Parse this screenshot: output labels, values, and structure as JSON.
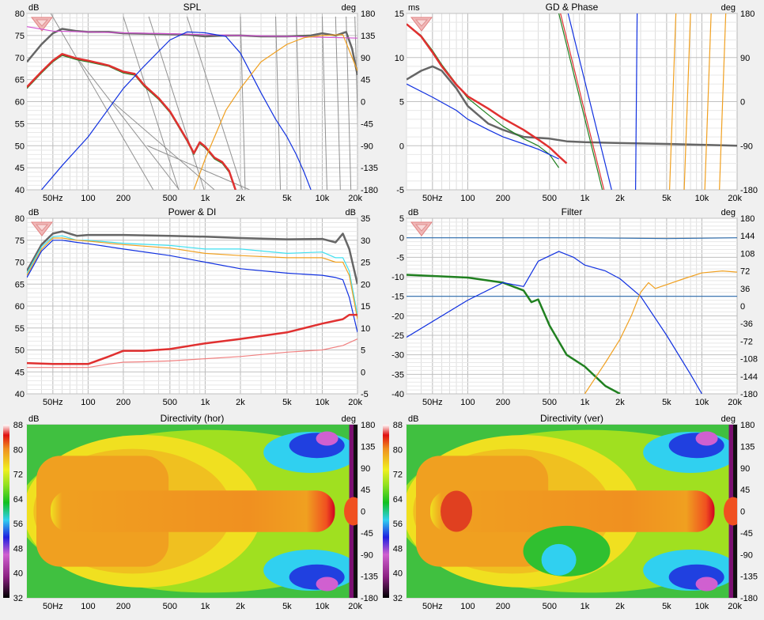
{
  "panels": {
    "spl": {
      "title": "SPL",
      "left_unit": "dB",
      "right_unit": "deg",
      "y_ticks": [
        "80",
        "75",
        "70",
        "65",
        "60",
        "55",
        "50",
        "45",
        "40"
      ],
      "y2_ticks": [
        "180",
        "135",
        "90",
        "45",
        "0",
        "-45",
        "-90",
        "-135",
        "-180"
      ]
    },
    "gd": {
      "title": "GD & Phase",
      "left_unit": "ms",
      "right_unit": "deg",
      "y_ticks": [
        "15",
        "10",
        "5",
        "0",
        "-5"
      ],
      "y2_ticks": [
        "180",
        "90",
        "0",
        "-90",
        "-180"
      ]
    },
    "power": {
      "title": "Power & DI",
      "left_unit": "dB",
      "right_unit": "dB",
      "y_ticks": [
        "80",
        "75",
        "70",
        "65",
        "60",
        "55",
        "50",
        "45",
        "40"
      ],
      "y2_ticks": [
        "35",
        "30",
        "25",
        "20",
        "15",
        "10",
        "5",
        "0",
        "-5"
      ]
    },
    "filter": {
      "title": "Filter",
      "left_unit": "dB",
      "right_unit": "deg",
      "y_ticks": [
        "5",
        "0",
        "-5",
        "-10",
        "-15",
        "-20",
        "-25",
        "-30",
        "-35",
        "-40"
      ],
      "y2_ticks": [
        "180",
        "144",
        "108",
        "72",
        "36",
        "0",
        "-36",
        "-72",
        "-108",
        "-144",
        "-180"
      ]
    },
    "dir_hor": {
      "title": "Directivity (hor)",
      "left_unit": "dB",
      "right_unit": "deg",
      "y_ticks": [
        "88",
        "80",
        "72",
        "64",
        "56",
        "48",
        "40",
        "32"
      ],
      "y2_ticks": [
        "180",
        "135",
        "90",
        "45",
        "0",
        "-45",
        "-90",
        "-135",
        "-180"
      ]
    },
    "dir_ver": {
      "title": "Directivity (ver)",
      "left_unit": "dB",
      "right_unit": "deg",
      "y_ticks": [
        "88",
        "80",
        "72",
        "64",
        "56",
        "48",
        "40",
        "32"
      ],
      "y2_ticks": [
        "180",
        "135",
        "90",
        "45",
        "0",
        "-45",
        "-90",
        "-135",
        "-180"
      ]
    }
  },
  "x_ticks": [
    {
      "f": 50,
      "label": "50Hz"
    },
    {
      "f": 100,
      "label": "100"
    },
    {
      "f": 200,
      "label": "200"
    },
    {
      "f": 500,
      "label": "500"
    },
    {
      "f": 1000,
      "label": "1k"
    },
    {
      "f": 2000,
      "label": "2k"
    },
    {
      "f": 5000,
      "label": "5k"
    },
    {
      "f": 10000,
      "label": "10k"
    },
    {
      "f": 20000,
      "label": "20k"
    }
  ],
  "colors": {
    "bg": "#f0f0f0",
    "plot_bg": "#ffffff",
    "grid": "#d0d0d0",
    "gray": "#666666",
    "thin_gray": "#909090",
    "magenta": "#d050d0",
    "green": "#208020",
    "red": "#e03030",
    "blue": "#1030e0",
    "orange": "#f0a020",
    "cyan": "#40e0f0",
    "light_red": "#f08080",
    "steel": "#2f6fb0"
  },
  "chart_data": [
    {
      "type": "line",
      "title": "SPL",
      "xscale": "log",
      "xlim": [
        30,
        20000
      ],
      "ylim": [
        40,
        80
      ],
      "ylabel": "dB",
      "y2lim": [
        -180,
        180
      ],
      "y2label": "deg",
      "series": [
        {
          "color": "gray",
          "x": [
            30,
            40,
            50,
            60,
            80,
            100,
            150,
            200,
            300,
            500,
            700,
            1000,
            1500,
            2000,
            3000,
            5000,
            8000,
            10000,
            13000,
            16000,
            18000,
            20000
          ],
          "y": [
            69,
            73,
            75.5,
            76.5,
            76,
            75.8,
            75.8,
            75.5,
            75.4,
            75.3,
            75.2,
            74.8,
            75,
            75,
            74.8,
            74.8,
            75,
            75.5,
            75,
            75.8,
            72,
            66
          ]
        },
        {
          "color": "magenta",
          "x": [
            30,
            50,
            100,
            200,
            500,
            1000,
            2000,
            5000,
            10000,
            20000
          ],
          "y": [
            77,
            76,
            75.8,
            75.6,
            75.4,
            75.2,
            75.0,
            74.8,
            74.6,
            74.4
          ]
        },
        {
          "color": "green",
          "x": [
            30,
            40,
            50,
            60,
            80,
            100,
            150,
            200,
            250,
            300,
            400,
            500,
            600,
            700,
            800,
            900,
            1000,
            1200,
            1400,
            1600,
            1800,
            2000
          ],
          "y": [
            63,
            66.5,
            69,
            70.5,
            69.5,
            69,
            68,
            66.5,
            66,
            63.5,
            60.5,
            57.5,
            54,
            51,
            48,
            50.5,
            49.5,
            47,
            46,
            44,
            40,
            36
          ]
        },
        {
          "color": "red",
          "x": [
            30,
            40,
            50,
            60,
            80,
            100,
            150,
            200,
            250,
            300,
            400,
            500,
            600,
            700,
            800,
            900,
            1000,
            1200,
            1400,
            1600,
            1800,
            2000
          ],
          "y": [
            63.3,
            66.8,
            69.3,
            70.8,
            69.8,
            69.3,
            68.2,
            66.8,
            66.3,
            63.8,
            60.8,
            57.8,
            54.3,
            51.3,
            48.3,
            50.8,
            49.8,
            47.3,
            46.3,
            44.3,
            40.3,
            36.3
          ]
        },
        {
          "color": "blue",
          "x": [
            40,
            60,
            100,
            200,
            300,
            500,
            700,
            1000,
            1500,
            2000,
            3000,
            4000,
            5000,
            6000,
            7000,
            8000
          ],
          "y": [
            40,
            45.5,
            52,
            63,
            68,
            74,
            75.8,
            75.6,
            74.8,
            71,
            62,
            56,
            52,
            48,
            44,
            40
          ]
        },
        {
          "color": "orange",
          "x": [
            800,
            1000,
            1500,
            2000,
            3000,
            5000,
            7000,
            10000,
            15000,
            20000
          ],
          "y": [
            40,
            47,
            58,
            63,
            69,
            73,
            74.5,
            75,
            75.2,
            67
          ]
        }
      ]
    },
    {
      "type": "line",
      "title": "GD & Phase",
      "xscale": "log",
      "xlim": [
        30,
        20000
      ],
      "ylim": [
        -5,
        15
      ],
      "ylabel": "ms",
      "y2lim": [
        -180,
        180
      ],
      "y2label": "deg",
      "series": [
        {
          "color": "gray",
          "x": [
            30,
            40,
            50,
            60,
            80,
            100,
            150,
            200,
            300,
            500,
            700,
            1000,
            2000,
            5000,
            10000,
            20000
          ],
          "y": [
            7.5,
            8.5,
            9.0,
            8.5,
            6.5,
            4.5,
            2.5,
            1.8,
            1.0,
            0.8,
            0.5,
            0.4,
            0.3,
            0.2,
            0.1,
            0.0
          ]
        },
        {
          "color": "green",
          "x": [
            30,
            40,
            50,
            60,
            80,
            100,
            150,
            200,
            300,
            400,
            500,
            600
          ],
          "y": [
            13.8,
            12.5,
            10.8,
            9.2,
            7.0,
            5.4,
            3.5,
            2.2,
            0.8,
            0.0,
            -1.0,
            -2.5
          ]
        },
        {
          "color": "red",
          "x": [
            30,
            40,
            50,
            60,
            80,
            100,
            150,
            200,
            300,
            400,
            500,
            600,
            700
          ],
          "y": [
            13.8,
            12.4,
            10.6,
            9.0,
            6.9,
            5.6,
            4.2,
            3.1,
            1.8,
            0.7,
            -0.2,
            -1.2,
            -2.0
          ]
        },
        {
          "color": "blue",
          "x": [
            30,
            50,
            80,
            100,
            150,
            200,
            300,
            400,
            500,
            600
          ],
          "y": [
            7.0,
            5.5,
            4.0,
            3.0,
            1.8,
            1.0,
            0.2,
            -0.4,
            -1.0,
            -1.5
          ]
        }
      ]
    },
    {
      "type": "line",
      "title": "Power & DI",
      "xscale": "log",
      "xlim": [
        30,
        20000
      ],
      "ylim": [
        40,
        80
      ],
      "ylabel": "dB",
      "y2lim": [
        -5,
        35
      ],
      "y2label": "dB",
      "series": [
        {
          "color": "gray",
          "x": [
            30,
            40,
            50,
            60,
            80,
            100,
            200,
            500,
            1000,
            2000,
            5000,
            10000,
            13000,
            15000,
            17000,
            20000
          ],
          "y": [
            68,
            74,
            76.5,
            77,
            76,
            76.2,
            76.2,
            76,
            75.8,
            75.5,
            75.2,
            75.3,
            74.5,
            76.5,
            73,
            65
          ]
        },
        {
          "color": "cyan",
          "x": [
            30,
            40,
            50,
            60,
            80,
            100,
            200,
            500,
            1000,
            2000,
            5000,
            10000,
            13000,
            15000,
            17000,
            20000
          ],
          "y": [
            67.5,
            73.5,
            75.8,
            76,
            75,
            75,
            74.3,
            73.8,
            73,
            73,
            72,
            72.3,
            71,
            71,
            68,
            58
          ]
        },
        {
          "color": "orange",
          "x": [
            30,
            40,
            50,
            60,
            80,
            100,
            200,
            500,
            1000,
            2000,
            5000,
            10000,
            13000,
            15000,
            17000,
            20000
          ],
          "y": [
            67,
            73,
            75.5,
            75.5,
            75,
            74.8,
            74,
            73.2,
            72,
            71.5,
            71,
            71,
            70,
            70,
            67,
            57
          ]
        },
        {
          "color": "blue",
          "x": [
            30,
            40,
            50,
            60,
            80,
            100,
            200,
            500,
            1000,
            2000,
            5000,
            10000,
            13000,
            15000,
            17000,
            20000
          ],
          "y": [
            66.5,
            72.5,
            75,
            75,
            74.5,
            74.2,
            73,
            71.5,
            70,
            68.5,
            67.5,
            67,
            66.5,
            66,
            62,
            54
          ]
        },
        {
          "color": "red",
          "x": [
            30,
            50,
            100,
            150,
            200,
            300,
            500,
            1000,
            2000,
            5000,
            10000,
            15000,
            17000,
            20000
          ],
          "y": [
            47,
            46.8,
            46.8,
            48.5,
            49.8,
            49.8,
            50.2,
            51.5,
            52.5,
            54,
            56,
            57,
            58,
            58
          ]
        },
        {
          "color": "light_red",
          "x": [
            30,
            50,
            100,
            150,
            200,
            300,
            500,
            1000,
            2000,
            5000,
            10000,
            15000,
            20000
          ],
          "y": [
            46,
            46,
            46,
            46.8,
            47.2,
            47.3,
            47.5,
            48,
            48.5,
            49.5,
            50,
            51,
            52.5
          ]
        }
      ]
    },
    {
      "type": "line",
      "title": "Filter",
      "xscale": "log",
      "xlim": [
        30,
        20000
      ],
      "ylim": [
        -40,
        5
      ],
      "ylabel": "dB",
      "y2lim": [
        -180,
        180
      ],
      "y2label": "deg",
      "series": [
        {
          "color": "steel",
          "x": [
            30,
            1000,
            5000,
            20000
          ],
          "y": [
            0,
            0,
            -0.2,
            0
          ]
        },
        {
          "color": "steel",
          "x": [
            30,
            20000
          ],
          "y": [
            -15,
            -15
          ]
        },
        {
          "color": "green",
          "x": [
            30,
            100,
            200,
            300,
            350,
            400,
            500,
            700,
            1000,
            1500,
            2000
          ],
          "y": [
            -9.5,
            -10.2,
            -11.5,
            -13.5,
            -16.5,
            -15.8,
            -22.5,
            -30,
            -33,
            -38,
            -40
          ]
        },
        {
          "color": "blue",
          "x": [
            30,
            100,
            200,
            300,
            400,
            600,
            800,
            1000,
            1500,
            2000,
            3000,
            5000,
            8000,
            10000
          ],
          "y": [
            -25.5,
            -16,
            -11.5,
            -12.5,
            -6,
            -3.5,
            -5,
            -7,
            -8.5,
            -10.5,
            -15,
            -25,
            -35,
            -40
          ]
        },
        {
          "color": "orange",
          "x": [
            1000,
            1500,
            2000,
            2500,
            3000,
            3500,
            4000,
            5000,
            7000,
            10000,
            15000,
            20000
          ],
          "y": [
            -40,
            -32,
            -26,
            -20,
            -14,
            -11.5,
            -13,
            -12,
            -10.5,
            -9,
            -8.5,
            -8.8
          ]
        }
      ]
    },
    {
      "type": "heatmap",
      "title": "Directivity (hor)",
      "xscale": "log",
      "xlim": [
        30,
        20000
      ],
      "ylim": [
        -180,
        180
      ],
      "y2label": "deg",
      "colorbar": [
        32,
        88
      ],
      "colorbar_unit": "dB"
    },
    {
      "type": "heatmap",
      "title": "Directivity (ver)",
      "xscale": "log",
      "xlim": [
        30,
        20000
      ],
      "ylim": [
        -180,
        180
      ],
      "y2label": "deg",
      "colorbar": [
        32,
        88
      ],
      "colorbar_unit": "dB"
    }
  ]
}
